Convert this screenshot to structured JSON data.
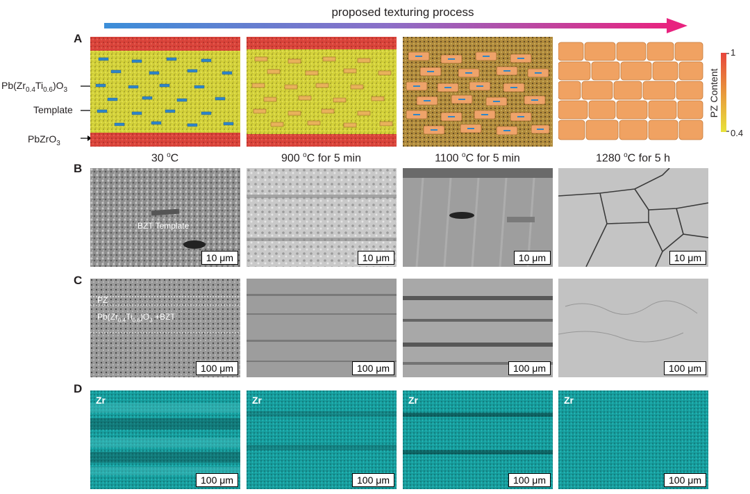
{
  "arrow": {
    "label": "proposed texturing process",
    "color_start": "#3b8ed9",
    "color_end": "#e8237f"
  },
  "panels": {
    "a": "A",
    "b": "B",
    "c": "C",
    "d": "D"
  },
  "left_labels": {
    "pzt": {
      "pre": "Pb(Zr",
      "s1": "0.4",
      "mid": "Ti",
      "s2": "0.6",
      "post": ")O",
      "s3": "3"
    },
    "template": "Template",
    "pzo": {
      "pre": "PbZrO",
      "s": "3"
    }
  },
  "colorbar": {
    "title": "PZ Content",
    "max": "1",
    "min": "0.4",
    "color_top": "#e8453c",
    "color_bottom": "#e8e23a"
  },
  "temperatures": [
    {
      "base": "30 ",
      "sup": "o",
      "rest": "C"
    },
    {
      "base": "900 ",
      "sup": "o",
      "rest": "C for 5 min"
    },
    {
      "base": "1100 ",
      "sup": "o",
      "rest": "C for 5 min"
    },
    {
      "base": "1280 ",
      "sup": "o",
      "rest": "C for 5 h"
    }
  ],
  "row_b": {
    "scale": "10 μm",
    "template_label": "BZT Template"
  },
  "row_c": {
    "scale": "100 μm",
    "pz_label": "PZ",
    "pzt_label": {
      "pre": "Pb(Zr",
      "s1": "0.4",
      "mid": "Ti",
      "s2": "0.6",
      "post": ")O",
      "s3": "3",
      "tail": " +BZT"
    }
  },
  "row_d": {
    "scale": "100 μm",
    "element": "Zr",
    "color": "#16a3a3"
  }
}
